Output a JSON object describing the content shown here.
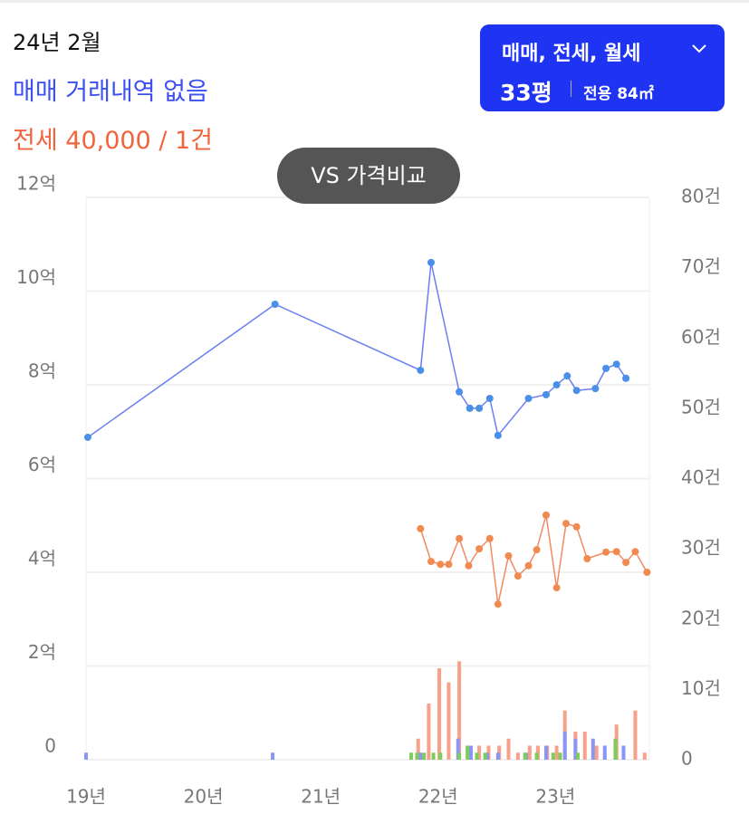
{
  "header": {
    "date": "24년 2월",
    "sale_note": "매매 거래내역 없음",
    "jeonse_note": "전세 40,000 / 1건"
  },
  "filter": {
    "types": "매매, 전세, 월세",
    "size": "33평",
    "area": "전용 84㎡"
  },
  "compare_button": "VS 가격비교",
  "chart_data": {
    "type": "line",
    "xlim": [
      19,
      23.8
    ],
    "xticks": [
      {
        "value": 19,
        "label": "19년"
      },
      {
        "value": 20,
        "label": "20년"
      },
      {
        "value": 21,
        "label": "21년"
      },
      {
        "value": 22,
        "label": "22년"
      },
      {
        "value": 23,
        "label": "23년"
      }
    ],
    "ylim": [
      0,
      12
    ],
    "yticks": [
      0,
      {
        "value": 2,
        "label": "2억"
      },
      {
        "value": 4,
        "label": "4억"
      },
      {
        "value": 6,
        "label": "6억"
      },
      {
        "value": 8,
        "label": "8억"
      },
      {
        "value": 10,
        "label": "10억"
      },
      {
        "value": 12,
        "label": "12억"
      }
    ],
    "y2lim": [
      0,
      80
    ],
    "y2ticks": [
      0,
      {
        "value": 10,
        "label": "10건"
      },
      {
        "value": 20,
        "label": "20건"
      },
      {
        "value": 30,
        "label": "30건"
      },
      {
        "value": 40,
        "label": "40건"
      },
      {
        "value": 50,
        "label": "50건"
      },
      {
        "value": 60,
        "label": "60건"
      },
      {
        "value": 70,
        "label": "70건"
      },
      {
        "value": 80,
        "label": "80건"
      }
    ],
    "grid": true,
    "series": [
      {
        "type": "bar",
        "axis": "y2",
        "color": "#f7a08a",
        "x": [
          21.83,
          21.92,
          22.01,
          22.09,
          22.18,
          22.26,
          22.35,
          22.43,
          22.52,
          22.6,
          22.68,
          22.78,
          22.85,
          22.93,
          23.01,
          23.08,
          23.17,
          23.25,
          23.35,
          23.42,
          23.52,
          23.68,
          23.76
        ],
        "values": [
          3,
          8,
          13,
          11,
          14,
          2,
          2,
          2,
          2,
          3,
          1,
          2,
          2,
          2,
          2,
          7,
          4,
          4,
          2,
          1,
          5,
          7,
          1
        ]
      },
      {
        "type": "bar",
        "axis": "y2",
        "color": "#8b95f5",
        "x": [
          19.0,
          20.59,
          21.85,
          22.17,
          22.28,
          22.42,
          22.51,
          22.75,
          22.92,
          23.08,
          23.17,
          23.32,
          23.42,
          23.58
        ],
        "values": [
          1,
          1,
          1,
          3,
          2,
          1,
          1,
          1,
          2,
          4,
          3,
          3,
          2,
          2
        ]
      },
      {
        "type": "bar",
        "axis": "y2",
        "color": "#7ccd5a",
        "x": [
          21.77,
          21.82,
          21.88,
          21.96,
          22.02,
          22.18,
          22.25,
          22.33,
          22.4,
          22.74,
          22.84,
          22.98,
          23.04,
          23.19,
          23.51
        ],
        "values": [
          1,
          1,
          1,
          1,
          1,
          1,
          2,
          1,
          1,
          1,
          1,
          1,
          1,
          1,
          3
        ]
      },
      {
        "type": "line",
        "axis": "y",
        "color": "#6b7ff2",
        "marker": "#4a90e8",
        "x": [
          19.015,
          20.61,
          21.85,
          21.94,
          22.18,
          22.27,
          22.35,
          22.44,
          22.51,
          22.77,
          22.92,
          23.01,
          23.1,
          23.18,
          23.34,
          23.43,
          23.52,
          23.6
        ],
        "values": [
          6.88,
          9.72,
          8.31,
          10.61,
          7.85,
          7.5,
          7.5,
          7.71,
          6.92,
          7.71,
          7.79,
          8.0,
          8.19,
          7.88,
          7.92,
          8.35,
          8.44,
          8.14
        ]
      },
      {
        "type": "line",
        "axis": "y",
        "color": "#f28a63",
        "marker": "#f28a50",
        "x": [
          21.85,
          21.94,
          22.02,
          22.09,
          22.18,
          22.26,
          22.35,
          22.44,
          22.51,
          22.6,
          22.68,
          22.77,
          22.84,
          22.92,
          23.01,
          23.09,
          23.18,
          23.27,
          23.43,
          23.52,
          23.6,
          23.68,
          23.78
        ],
        "values": [
          4.93,
          4.23,
          4.17,
          4.17,
          4.72,
          4.14,
          4.5,
          4.72,
          3.32,
          4.35,
          3.92,
          4.14,
          4.48,
          5.22,
          3.67,
          5.04,
          4.97,
          4.29,
          4.43,
          4.44,
          4.21,
          4.44,
          4.0
        ]
      }
    ]
  }
}
